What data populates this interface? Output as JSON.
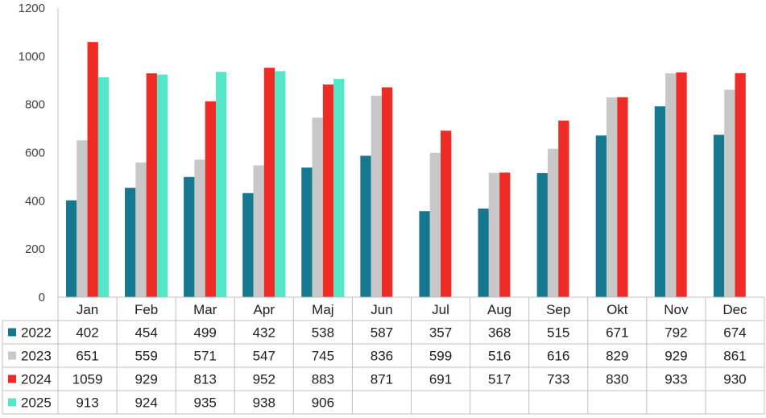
{
  "chart_data": {
    "type": "bar",
    "categories": [
      "Jan",
      "Feb",
      "Mar",
      "Apr",
      "Maj",
      "Jun",
      "Jul",
      "Aug",
      "Sep",
      "Okt",
      "Nov",
      "Dec"
    ],
    "series": [
      {
        "name": "2022",
        "color": "#16788f",
        "values": [
          402,
          454,
          499,
          432,
          538,
          587,
          357,
          368,
          515,
          671,
          792,
          674
        ]
      },
      {
        "name": "2023",
        "color": "#c8c8c8",
        "values": [
          651,
          559,
          571,
          547,
          745,
          836,
          599,
          516,
          616,
          829,
          929,
          861
        ]
      },
      {
        "name": "2024",
        "color": "#ee2b24",
        "values": [
          1059,
          929,
          813,
          952,
          883,
          871,
          691,
          517,
          733,
          830,
          933,
          930
        ]
      },
      {
        "name": "2025",
        "color": "#55e6c8",
        "values": [
          913,
          924,
          935,
          938,
          906,
          null,
          null,
          null,
          null,
          null,
          null,
          null
        ]
      }
    ],
    "yticks": [
      0,
      200,
      400,
      600,
      800,
      1000,
      1200
    ],
    "ylim": [
      0,
      1200
    ],
    "grid": false,
    "legend": "data-table",
    "title": "",
    "xlabel": "",
    "ylabel": ""
  }
}
